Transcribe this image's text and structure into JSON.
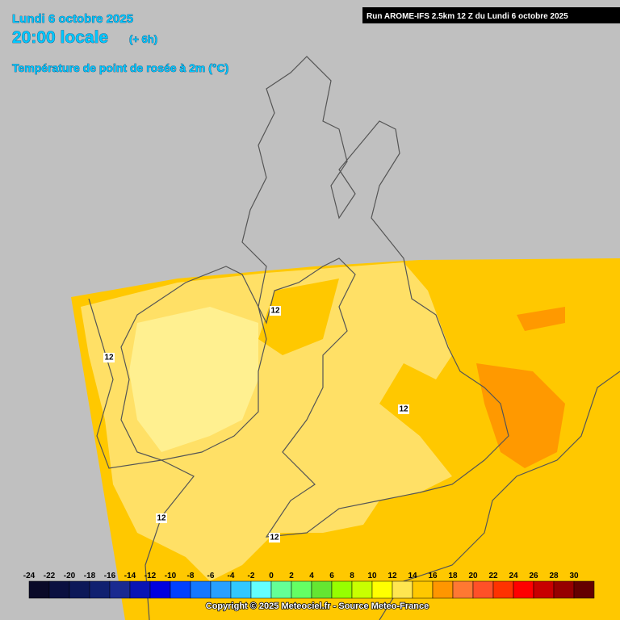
{
  "header": {
    "date": "Lundi 6 octobre 2025",
    "time": "20:00 locale",
    "lead": "(+ 6h)",
    "parameter": "Température de point de rosée à 2m (°C)",
    "run": "Run AROME-IFS 2.5km 12 Z du Lundi 6 octobre 2025"
  },
  "contour_labels": [
    12,
    12,
    12,
    12,
    12
  ],
  "legend": {
    "labels": [
      -24,
      -22,
      -20,
      -18,
      -16,
      -14,
      -12,
      -10,
      -8,
      -6,
      -4,
      -2,
      0,
      2,
      4,
      6,
      8,
      10,
      12,
      14,
      16,
      18,
      20,
      22,
      24,
      26,
      28,
      30
    ],
    "colors": [
      "#0a0a28",
      "#0b1040",
      "#0c1858",
      "#102070",
      "#1a2a90",
      "#0a14b4",
      "#0000e0",
      "#0040ff",
      "#1478ff",
      "#28a0ff",
      "#32c8ff",
      "#64ffff",
      "#64ff96",
      "#64ff64",
      "#64e632",
      "#96ff00",
      "#c8ff00",
      "#ffff00",
      "#ffe650",
      "#ffc800",
      "#ff9600",
      "#ff7832",
      "#ff5028",
      "#ff3200",
      "#ff0000",
      "#c80000",
      "#960000",
      "#640000"
    ]
  },
  "footer": {
    "copyright": "Copyright © 2025 Meteociel.fr - Source Meteo-France"
  }
}
